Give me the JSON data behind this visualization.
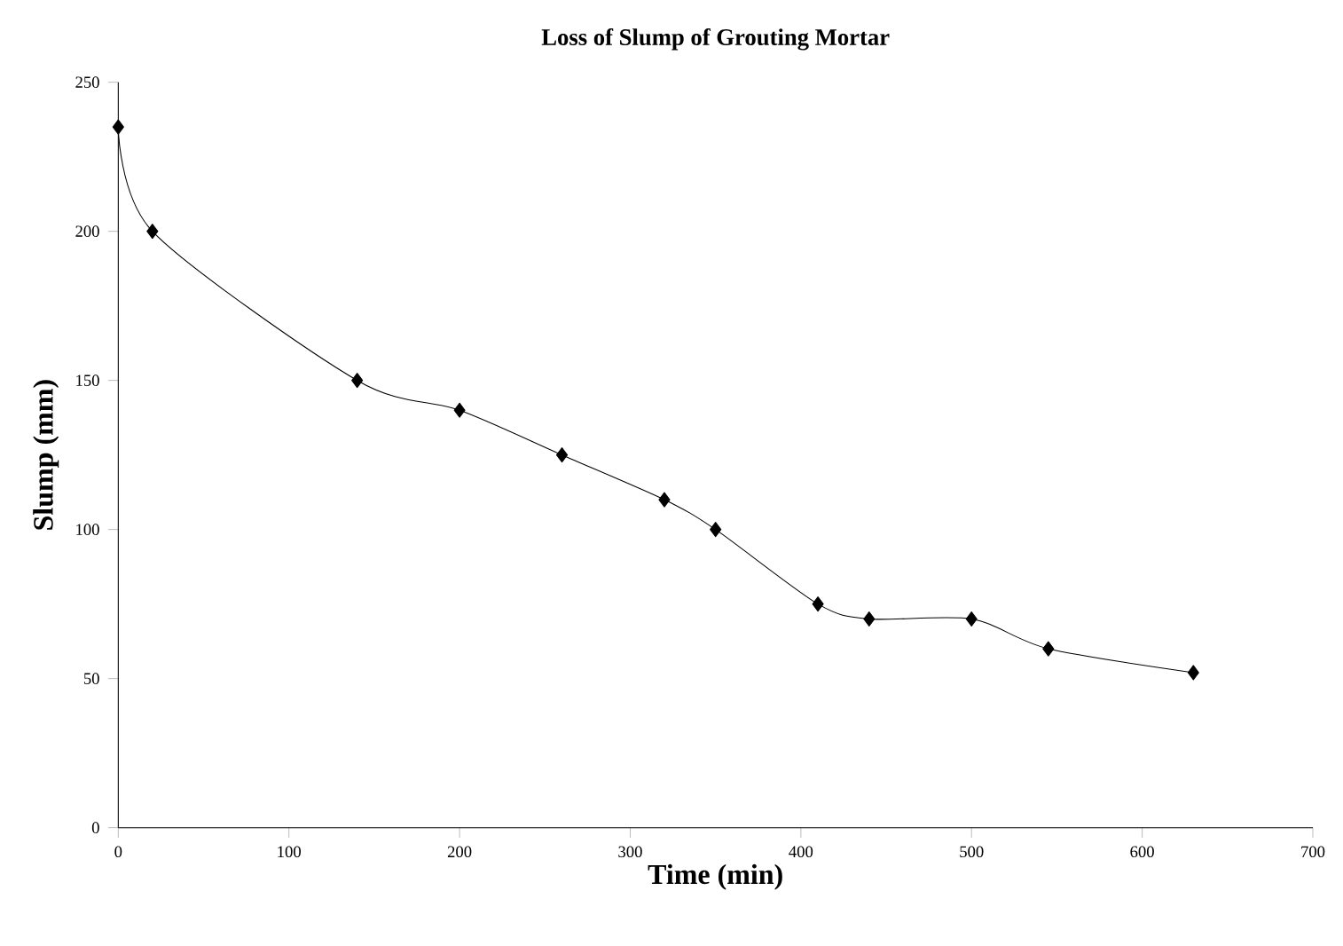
{
  "chart_data": {
    "type": "line",
    "title": "Loss of Slump of Grouting Mortar",
    "xlabel": "Time     (min)",
    "ylabel": "Slump     (mm)",
    "x": [
      0,
      20,
      140,
      200,
      260,
      320,
      350,
      410,
      440,
      500,
      545,
      630
    ],
    "series": [
      {
        "color": "#000000",
        "values": [
          235,
          200,
          150,
          140,
          125,
          110,
          100,
          75,
          70,
          70,
          60,
          52
        ]
      }
    ],
    "xlim": [
      0,
      700
    ],
    "ylim": [
      0,
      250
    ],
    "xticks": [
      0,
      100,
      200,
      300,
      400,
      500,
      600,
      700
    ],
    "yticks": [
      0,
      50,
      100,
      150,
      200,
      250
    ],
    "marker": "diamond",
    "line_style": "solid",
    "grid": false
  }
}
